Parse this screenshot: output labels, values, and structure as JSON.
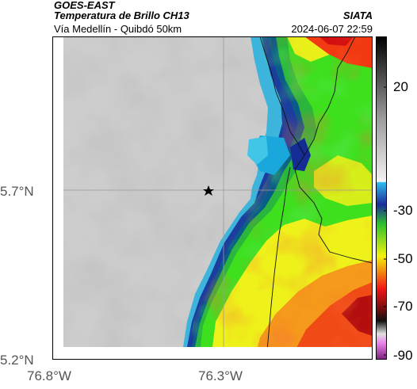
{
  "header": {
    "satellite": "GOES-EAST",
    "product": "Temperatura de Brillo CH13",
    "agency": "SIATA",
    "region": "Vía Medellín - Quibdó 50km",
    "datetime": "2024-06-07 22:59"
  },
  "axes": {
    "lat_labels": [
      "5.7°N",
      "5.2°N"
    ],
    "lon_labels": [
      "76.8°W",
      "76.3°W"
    ]
  },
  "colorbar": {
    "ticks": [
      "20",
      "-30",
      "-50",
      "-70",
      "-90"
    ]
  },
  "marker": {
    "icon": "star-icon"
  },
  "colors": {
    "background": "#ffffff",
    "cold_cloud_blue": "#1e2c8c",
    "cyan": "#1fb6e0",
    "green": "#2bd21b",
    "yellow": "#f1f40c",
    "orange": "#f2781c",
    "red": "#f21616"
  }
}
